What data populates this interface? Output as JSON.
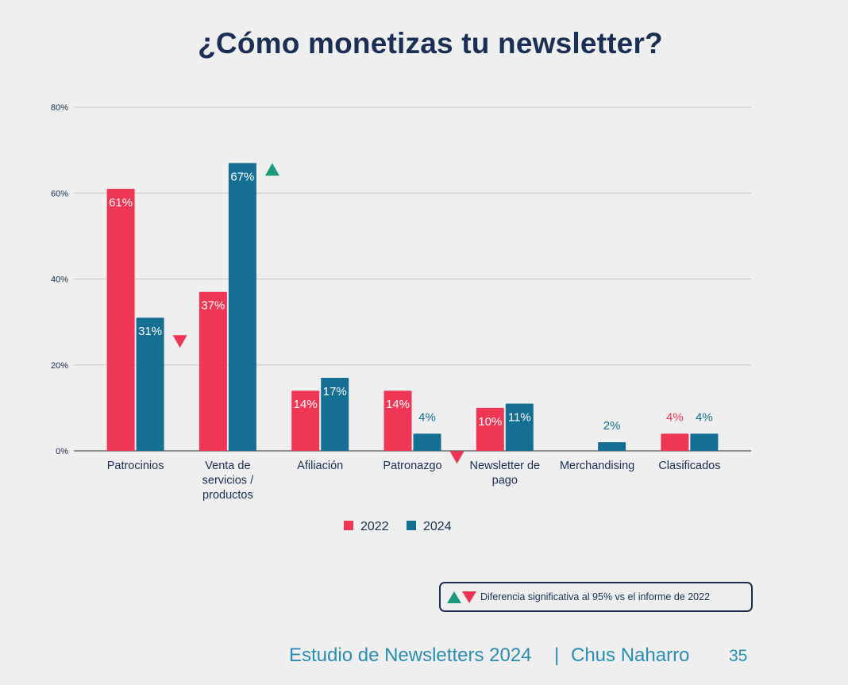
{
  "chart_data": {
    "type": "bar",
    "title": "¿Cómo monetizas tu newsletter?",
    "categories": [
      [
        "Patrocinios"
      ],
      [
        "Venta de",
        "servicios /",
        "productos"
      ],
      [
        "Afiliación"
      ],
      [
        "Patronazgo"
      ],
      [
        "Newsletter de",
        "pago"
      ],
      [
        "Merchandising"
      ],
      [
        "Clasificados"
      ]
    ],
    "series": [
      {
        "name": "2022",
        "color": "#ef3655",
        "values": [
          61,
          37,
          14,
          14,
          10,
          null,
          4
        ],
        "labels": [
          "61%",
          "37%",
          "14%",
          "14%",
          "10%",
          "",
          "4%"
        ]
      },
      {
        "name": "2024",
        "color": "#156f93",
        "values": [
          31,
          67,
          17,
          4,
          11,
          2,
          4
        ],
        "labels": [
          "31%",
          "67%",
          "17%",
          "4%",
          "11%",
          "2%",
          "4%"
        ]
      }
    ],
    "y_ticks": [
      0,
      20,
      40,
      60,
      80
    ],
    "y_tick_labels": [
      "0%",
      "20%",
      "40%",
      "60%",
      "80%"
    ],
    "ylim": [
      0,
      80
    ],
    "grid": true,
    "legend_position": "bottom-center",
    "significance_markers": [
      {
        "category_index": 0,
        "direction": "down"
      },
      {
        "category_index": 1,
        "direction": "up"
      },
      {
        "category_index": 3,
        "direction": "down"
      }
    ]
  },
  "note": {
    "text": "Diferencia significativa al 95% vs el informe de 2022",
    "up_color": "#1a9a7a",
    "down_color": "#ef3655"
  },
  "footer": {
    "study": "Estudio de Newsletters 2024",
    "separator": "|",
    "author": "Chus Naharro",
    "page": "35"
  }
}
